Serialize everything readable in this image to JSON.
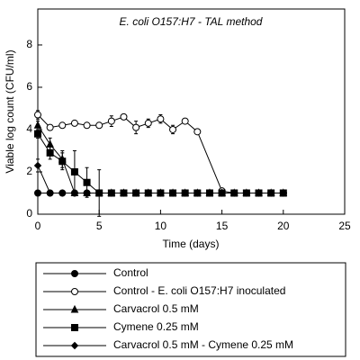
{
  "chart_data": {
    "type": "line",
    "title": "E. coli O157:H7 - TAL method",
    "x_label": "Time (days)",
    "y_label": "Viable log count (CFU/ml)",
    "xlim": [
      0,
      25
    ],
    "xticks": [
      0,
      5,
      10,
      15,
      20,
      25
    ],
    "ylim": [
      0,
      9.7
    ],
    "yticks": [
      0,
      2,
      4,
      6,
      8
    ],
    "series": [
      {
        "name": "Control",
        "marker": "circle",
        "color": "#000000",
        "x": [
          0,
          1,
          2,
          3,
          4,
          5,
          6,
          7,
          8,
          9,
          10,
          11,
          12,
          13,
          14,
          15,
          16,
          17,
          18,
          19,
          20
        ],
        "values": [
          1,
          1,
          1,
          1,
          1,
          1,
          1,
          1,
          1,
          1,
          1,
          1,
          1,
          1,
          1,
          1,
          1,
          1,
          1,
          1,
          1
        ],
        "errors": [
          null,
          null,
          null,
          null,
          null,
          null,
          null,
          null,
          null,
          null,
          null,
          null,
          null,
          null,
          null,
          null,
          null,
          null,
          null,
          null,
          null
        ]
      },
      {
        "name": "Control - E. coli O157:H7 inoculated",
        "marker": "circle-open",
        "color": "#000000",
        "x": [
          0,
          1,
          2,
          3,
          4,
          5,
          6,
          7,
          8,
          9,
          10,
          11,
          12,
          13,
          15,
          16,
          17,
          18,
          19,
          20
        ],
        "values": [
          4.7,
          4.1,
          4.2,
          4.3,
          4.2,
          4.2,
          4.4,
          4.6,
          4.1,
          4.3,
          4.5,
          4.0,
          4.4,
          3.9,
          1.1,
          1,
          1,
          1,
          1,
          1
        ],
        "errors": [
          0.2,
          0.1,
          0.1,
          0.1,
          0.1,
          0.1,
          0.25,
          0.1,
          0.3,
          0.2,
          0.2,
          0.2,
          0.1,
          0.1,
          0.1,
          null,
          null,
          null,
          null,
          null
        ]
      },
      {
        "name": "Carvacrol 0.5 mM",
        "marker": "triangle",
        "color": "#000000",
        "x": [
          0,
          1,
          2,
          3,
          4,
          5,
          6,
          7,
          8,
          9,
          10,
          11,
          12,
          13,
          14,
          15,
          16,
          17,
          18,
          19,
          20
        ],
        "values": [
          4.2,
          3.3,
          2.6,
          1,
          1,
          1,
          1,
          1,
          1,
          1,
          1,
          1,
          1,
          1,
          1,
          1,
          1,
          1,
          1,
          1,
          1
        ],
        "errors": [
          0.2,
          0.3,
          0.4,
          null,
          null,
          null,
          null,
          null,
          null,
          null,
          null,
          null,
          null,
          null,
          null,
          null,
          null,
          null,
          null,
          null,
          null
        ]
      },
      {
        "name": "Cymene 0.25 mM",
        "marker": "square",
        "color": "#000000",
        "x": [
          0,
          1,
          2,
          3,
          4,
          5,
          6,
          7,
          8,
          9,
          10,
          11,
          12,
          13,
          14,
          15,
          16,
          17,
          18,
          19,
          20
        ],
        "values": [
          3.8,
          2.9,
          2.5,
          2.0,
          1.5,
          1,
          1,
          1,
          1,
          1,
          1,
          1,
          1,
          1,
          1,
          1,
          1,
          1,
          1,
          1,
          1
        ],
        "errors": [
          0.2,
          0.3,
          0.4,
          1.0,
          0.7,
          1.1,
          null,
          null,
          null,
          null,
          null,
          null,
          null,
          null,
          null,
          null,
          null,
          null,
          null,
          null,
          null
        ]
      },
      {
        "name": "Carvacrol 0.5 mM - Cymene 0.25 mM",
        "marker": "diamond",
        "color": "#000000",
        "x": [
          0,
          1,
          2,
          3,
          4,
          5,
          6,
          7,
          8,
          9,
          10,
          11,
          12,
          13,
          14,
          15,
          16,
          17,
          18,
          19,
          20
        ],
        "values": [
          2.3,
          1,
          1,
          1,
          1,
          1,
          1,
          1,
          1,
          1,
          1,
          1,
          1,
          1,
          1,
          1,
          1,
          1,
          1,
          1,
          1
        ],
        "errors": [
          0.3,
          null,
          null,
          null,
          null,
          null,
          null,
          null,
          null,
          null,
          null,
          null,
          null,
          null,
          null,
          null,
          null,
          null,
          null,
          null,
          null
        ]
      }
    ]
  }
}
